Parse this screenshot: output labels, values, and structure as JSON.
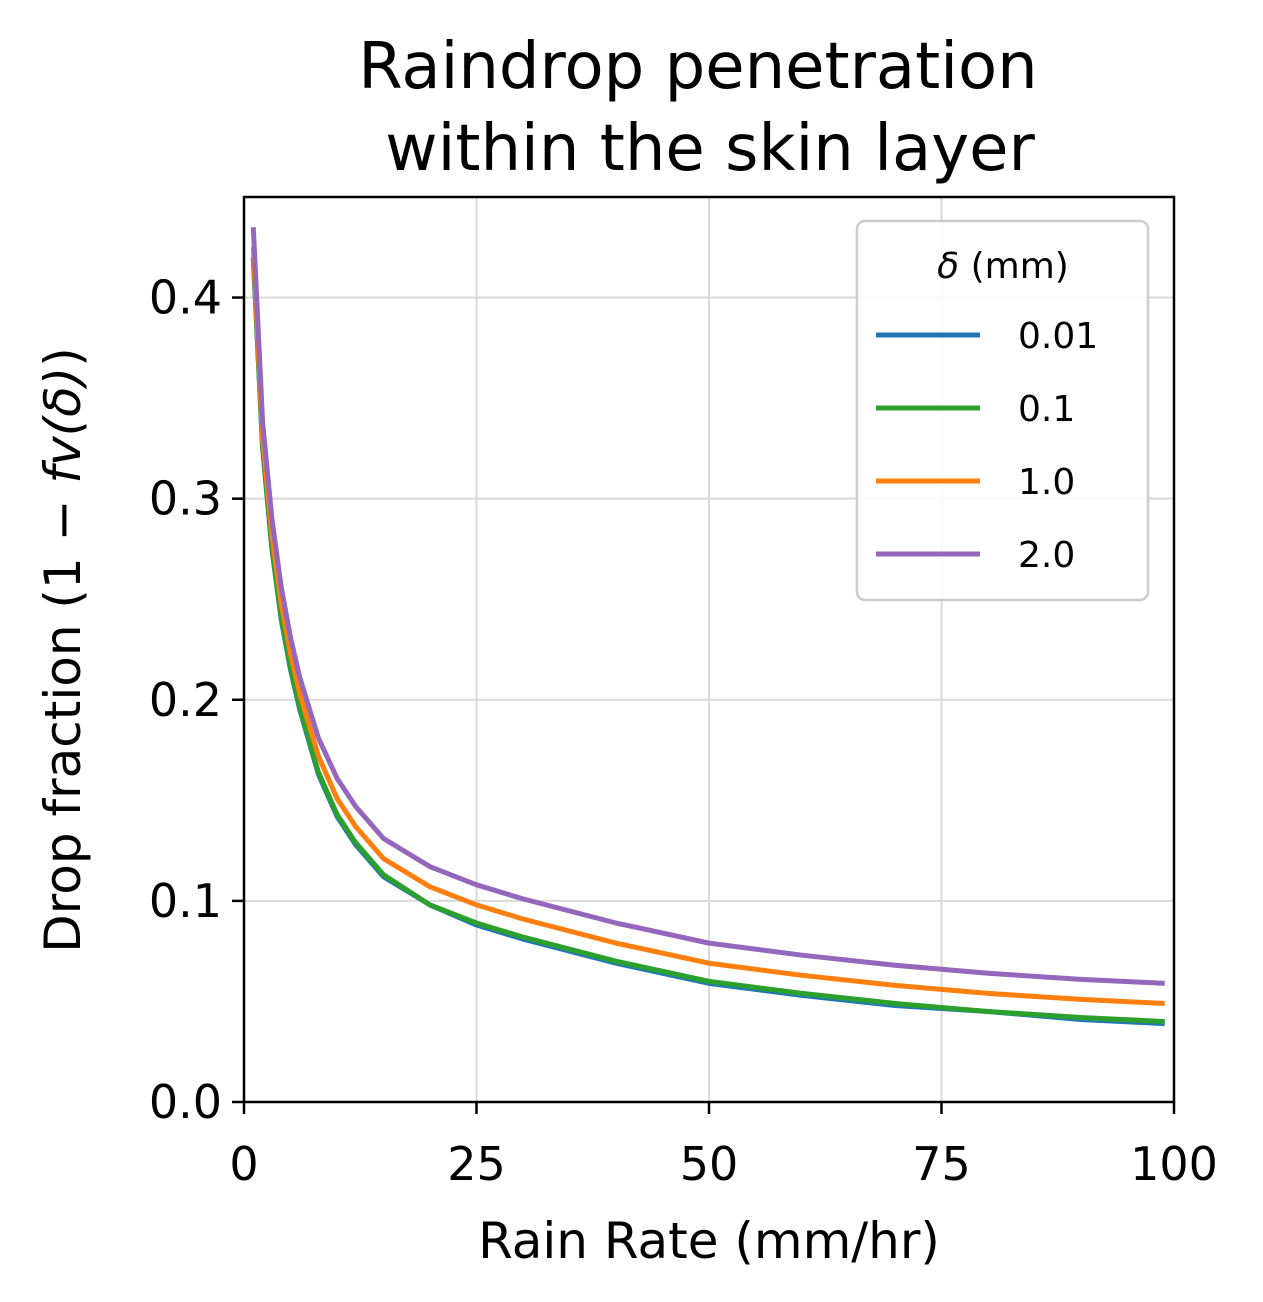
{
  "chart_data": {
    "type": "line",
    "title_line1": "Raindrop penetration",
    "title_line2": "within the skin layer",
    "xlabel": "Rain Rate (mm/hr)",
    "ylabel_prefix": "Drop fraction (1 − ",
    "ylabel_italic": "fv(δ)",
    "ylabel_suffix": ")",
    "xlim": [
      0,
      100
    ],
    "ylim": [
      0.0,
      0.45
    ],
    "xticks": [
      0,
      25,
      50,
      75,
      100
    ],
    "xtick_labels": [
      "0",
      "25",
      "50",
      "75",
      "100"
    ],
    "yticks": [
      0.0,
      0.1,
      0.2,
      0.3,
      0.4
    ],
    "ytick_labels": [
      "0.0",
      "0.1",
      "0.2",
      "0.3",
      "0.4"
    ],
    "grid": true,
    "legend": {
      "placement": "top-right",
      "title_italic": "δ",
      "title_rest": " (mm)"
    },
    "x": [
      1,
      2,
      3,
      4,
      5,
      6,
      8,
      10,
      12,
      15,
      20,
      25,
      30,
      40,
      50,
      60,
      70,
      80,
      90,
      99
    ],
    "series": [
      {
        "name": "0.01",
        "color": "#1f77b4",
        "values": [
          0.42,
          0.325,
          0.275,
          0.24,
          0.215,
          0.195,
          0.163,
          0.142,
          0.128,
          0.112,
          0.098,
          0.088,
          0.081,
          0.069,
          0.059,
          0.053,
          0.048,
          0.045,
          0.041,
          0.039
        ]
      },
      {
        "name": "0.1",
        "color": "#2ca02c",
        "values": [
          0.42,
          0.326,
          0.276,
          0.241,
          0.216,
          0.196,
          0.164,
          0.143,
          0.129,
          0.113,
          0.098,
          0.089,
          0.082,
          0.07,
          0.06,
          0.054,
          0.049,
          0.045,
          0.042,
          0.04
        ]
      },
      {
        "name": "1.0",
        "color": "#ff7f0e",
        "values": [
          0.425,
          0.33,
          0.282,
          0.248,
          0.223,
          0.203,
          0.172,
          0.151,
          0.137,
          0.121,
          0.107,
          0.098,
          0.091,
          0.079,
          0.069,
          0.063,
          0.058,
          0.054,
          0.051,
          0.049
        ]
      },
      {
        "name": "2.0",
        "color": "#9467bd",
        "values": [
          0.435,
          0.338,
          0.29,
          0.256,
          0.231,
          0.211,
          0.181,
          0.161,
          0.147,
          0.131,
          0.117,
          0.108,
          0.101,
          0.089,
          0.079,
          0.073,
          0.068,
          0.064,
          0.061,
          0.059
        ]
      }
    ]
  }
}
